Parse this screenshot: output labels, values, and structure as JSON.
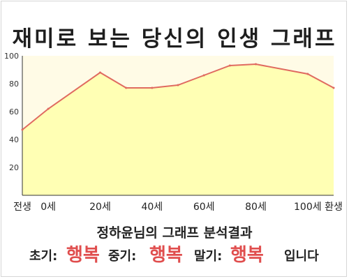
{
  "title": "재미로 보는 당신의 인생 그래프",
  "chart_data": {
    "type": "area",
    "x": [
      -10,
      0,
      20,
      30,
      40,
      50,
      60,
      70,
      80,
      100,
      110
    ],
    "values": [
      47,
      62,
      88,
      77,
      77,
      79,
      86,
      93,
      94,
      87,
      77
    ],
    "xticks": [
      {
        "x": -10,
        "label": "전생"
      },
      {
        "x": 0,
        "label": "0세"
      },
      {
        "x": 20,
        "label": "20세"
      },
      {
        "x": 40,
        "label": "40세"
      },
      {
        "x": 60,
        "label": "60세"
      },
      {
        "x": 80,
        "label": "80세"
      },
      {
        "x": 100,
        "label": "100세"
      },
      {
        "x": 110,
        "label": "환생"
      }
    ],
    "yticks": [
      20,
      40,
      60,
      80,
      100
    ],
    "xlim": [
      -10,
      110
    ],
    "ylim": [
      0,
      100
    ],
    "grid": false,
    "colors": {
      "line": "#e06a60",
      "fill": "#ffffb4",
      "background": "#fffbe6"
    }
  },
  "analysis": {
    "heading": "정하윤님의 그래프 분석결과",
    "early_label": "초기:",
    "early_value": "행복",
    "middle_label": "중기:",
    "middle_value": "행복",
    "late_label": "말기:",
    "late_value": "행복",
    "ending": "입니다",
    "highlight_color": "#e04e4e"
  }
}
